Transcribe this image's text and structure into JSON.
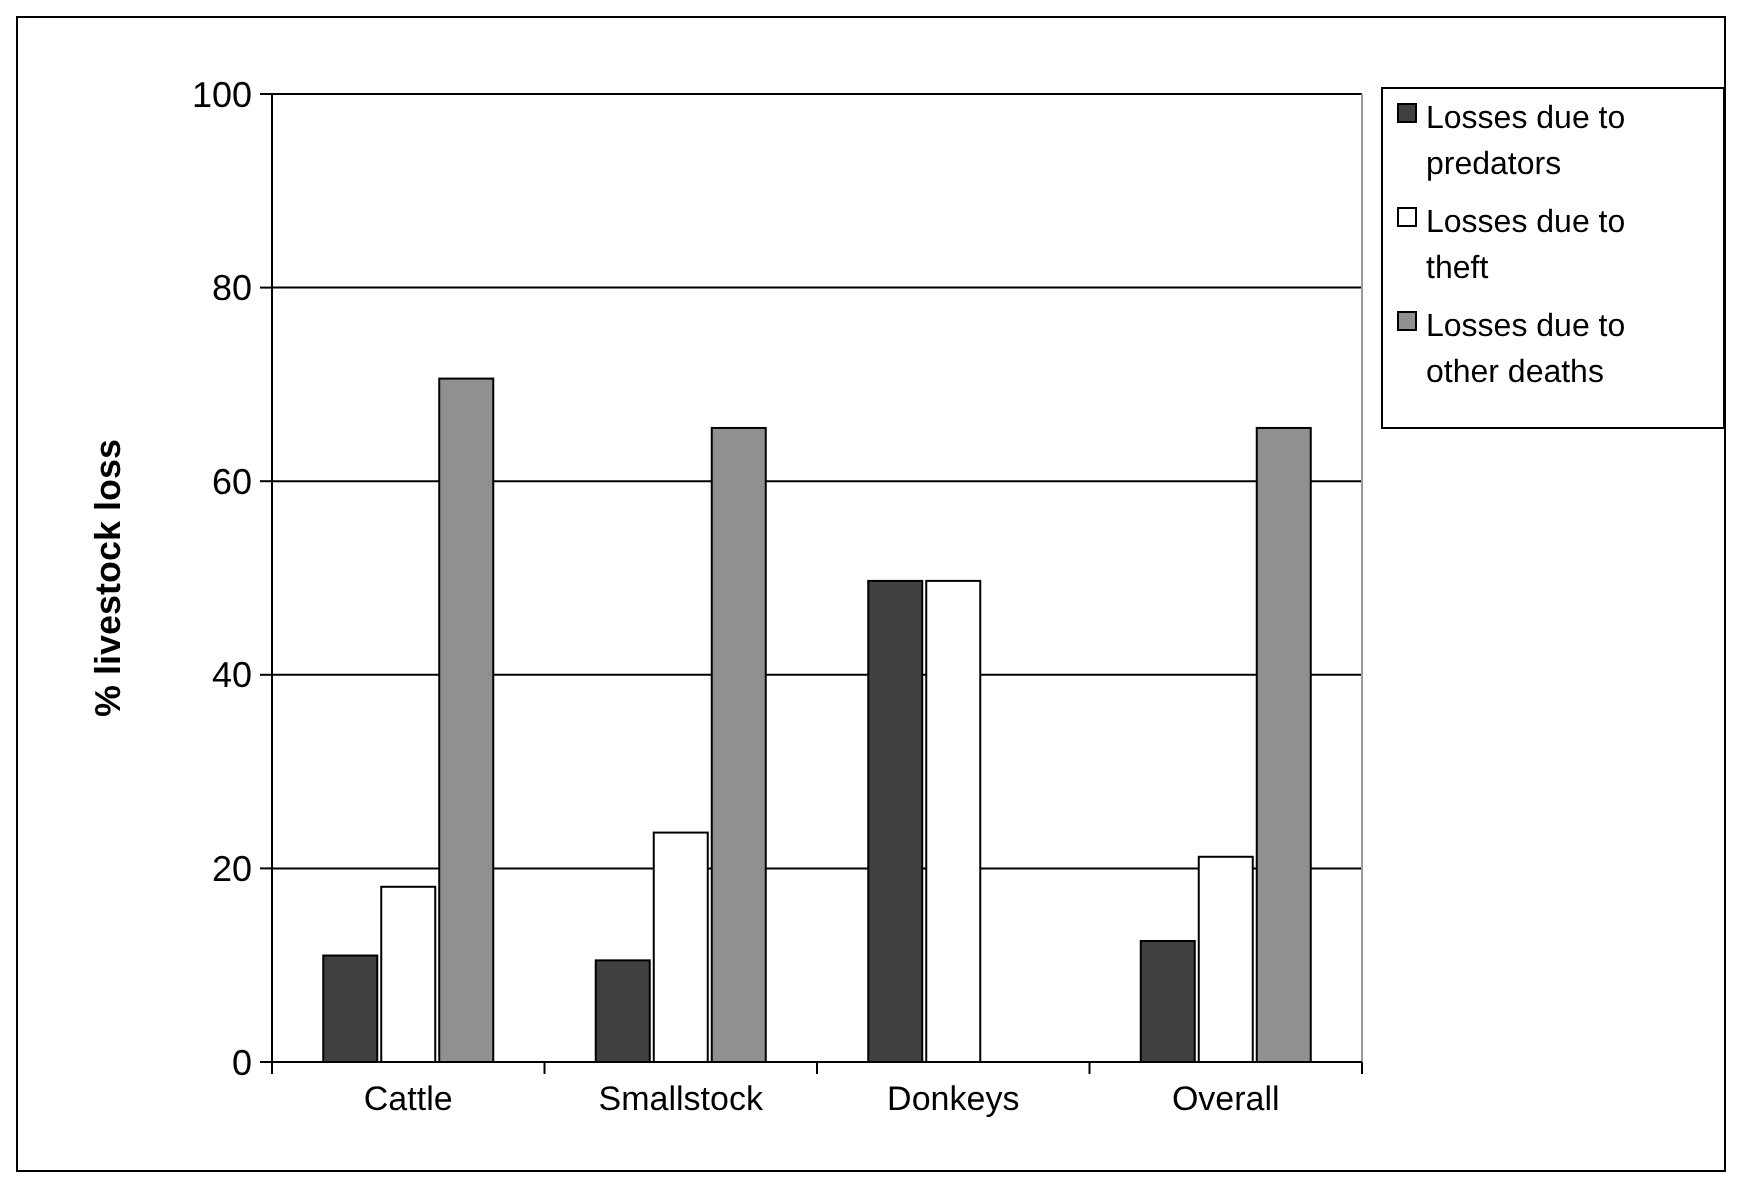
{
  "chart_data": {
    "type": "bar",
    "ylabel": "% livestock loss",
    "categories": [
      "Cattle",
      "Smallstock",
      "Donkeys",
      "Overall"
    ],
    "series": [
      {
        "name": "Losses due to predators",
        "color": "#404040",
        "values": [
          11,
          10.5,
          49.7,
          12.5
        ]
      },
      {
        "name": "Losses due to theft",
        "color": "#ffffff",
        "values": [
          18.1,
          23.7,
          49.7,
          21.2
        ]
      },
      {
        "name": "Losses due to other deaths",
        "color": "#909090",
        "values": [
          70.6,
          65.5,
          null,
          65.5
        ]
      }
    ],
    "ylim": [
      0,
      100
    ],
    "yticks": [
      0,
      20,
      40,
      60,
      80,
      100
    ],
    "grid": "y",
    "legend": "right"
  }
}
